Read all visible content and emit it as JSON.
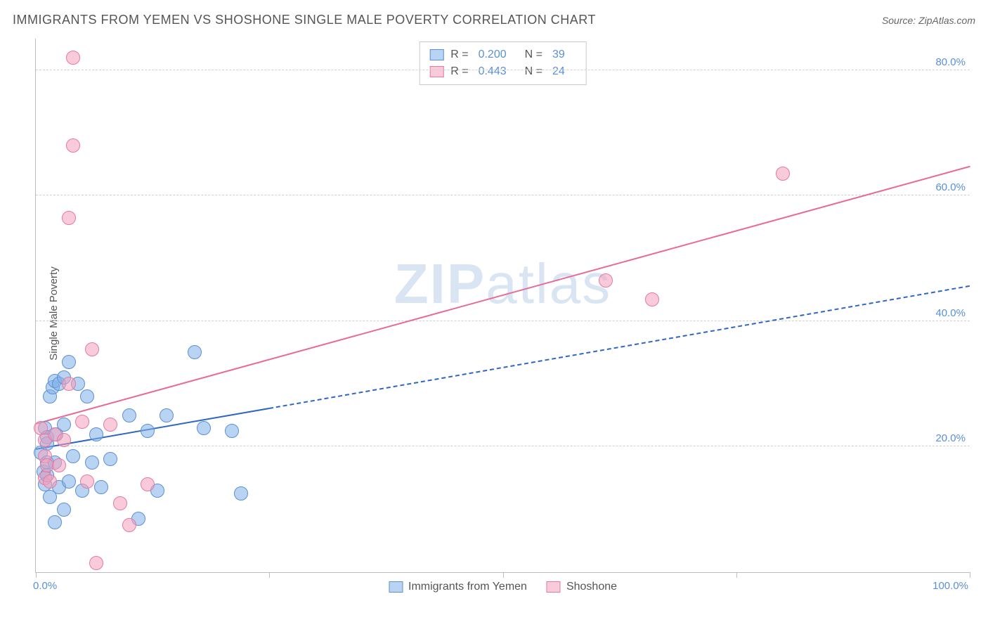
{
  "title": "IMMIGRANTS FROM YEMEN VS SHOSHONE SINGLE MALE POVERTY CORRELATION CHART",
  "source_label": "Source: ZipAtlas.com",
  "ylabel": "Single Male Poverty",
  "watermark": {
    "bold": "ZIP",
    "light": "atlas"
  },
  "chart": {
    "type": "scatter",
    "xlim": [
      0,
      100
    ],
    "ylim": [
      0,
      85
    ],
    "x_ticks": [
      0,
      25,
      50,
      75,
      100
    ],
    "y_gridlines": [
      20,
      40,
      60,
      80
    ],
    "x_start_label": "0.0%",
    "x_end_label": "100.0%",
    "y_labels": [
      "20.0%",
      "40.0%",
      "60.0%",
      "80.0%"
    ],
    "background_color": "#ffffff",
    "grid_color": "#d0d0d0",
    "axis_color": "#bdbdbd",
    "tick_label_color": "#5b8fd6",
    "point_radius": 10,
    "series": [
      {
        "name": "Immigrants from Yemen",
        "fill": "rgba(128,176,232,0.55)",
        "stroke": "#5b8fd6",
        "trend_color": "#2f66c4",
        "trend_width": 2.5,
        "trend_solid_xmax": 25,
        "trend": {
          "intercept": 19.5,
          "slope": 0.26
        },
        "R": "0.200",
        "N": "39",
        "points": [
          [
            0.5,
            19
          ],
          [
            0.8,
            16
          ],
          [
            1,
            23
          ],
          [
            1,
            14
          ],
          [
            1.2,
            21.5
          ],
          [
            1.2,
            20.5
          ],
          [
            1.2,
            17.5
          ],
          [
            1.2,
            15.5
          ],
          [
            1.5,
            28
          ],
          [
            1.5,
            12
          ],
          [
            1.8,
            29.5
          ],
          [
            2,
            30.5
          ],
          [
            2,
            17.5
          ],
          [
            2,
            8
          ],
          [
            2.2,
            22
          ],
          [
            2.5,
            30
          ],
          [
            2.5,
            13.5
          ],
          [
            3,
            31
          ],
          [
            3,
            10
          ],
          [
            3,
            23.5
          ],
          [
            3.5,
            33.5
          ],
          [
            3.5,
            14.5
          ],
          [
            4,
            18.5
          ],
          [
            4.5,
            30
          ],
          [
            5,
            13
          ],
          [
            5.5,
            28
          ],
          [
            6,
            17.5
          ],
          [
            6.5,
            22
          ],
          [
            7,
            13.5
          ],
          [
            8,
            18
          ],
          [
            10,
            25
          ],
          [
            11,
            8.5
          ],
          [
            12,
            22.5
          ],
          [
            13,
            13
          ],
          [
            14,
            25
          ],
          [
            17,
            35
          ],
          [
            18,
            23
          ],
          [
            21,
            22.5
          ],
          [
            22,
            12.5
          ]
        ]
      },
      {
        "name": "Shoshone",
        "fill": "rgba(244,160,188,0.55)",
        "stroke": "#e47aa0",
        "trend_color": "#e86b94",
        "trend_width": 2.5,
        "trend_solid_xmax": 100,
        "trend": {
          "intercept": 23.5,
          "slope": 0.41
        },
        "R": "0.443",
        "N": "24",
        "points": [
          [
            0.5,
            23
          ],
          [
            1,
            18.5
          ],
          [
            1,
            21
          ],
          [
            1,
            15
          ],
          [
            1.2,
            17
          ],
          [
            1.5,
            14.5
          ],
          [
            2,
            22
          ],
          [
            2.5,
            17
          ],
          [
            3,
            21
          ],
          [
            3.5,
            30
          ],
          [
            3.5,
            56.5
          ],
          [
            4,
            82
          ],
          [
            4,
            68
          ],
          [
            5,
            24
          ],
          [
            5.5,
            14.5
          ],
          [
            6,
            35.5
          ],
          [
            6.5,
            1.5
          ],
          [
            8,
            23.5
          ],
          [
            9,
            11
          ],
          [
            10,
            7.5
          ],
          [
            12,
            14
          ],
          [
            61,
            46.5
          ],
          [
            66,
            43.5
          ],
          [
            80,
            63.5
          ]
        ]
      }
    ]
  },
  "legend_bottom": [
    {
      "label": "Immigrants from Yemen",
      "fill": "rgba(128,176,232,0.55)",
      "stroke": "#5b8fd6"
    },
    {
      "label": "Shoshone",
      "fill": "rgba(244,160,188,0.55)",
      "stroke": "#e47aa0"
    }
  ]
}
